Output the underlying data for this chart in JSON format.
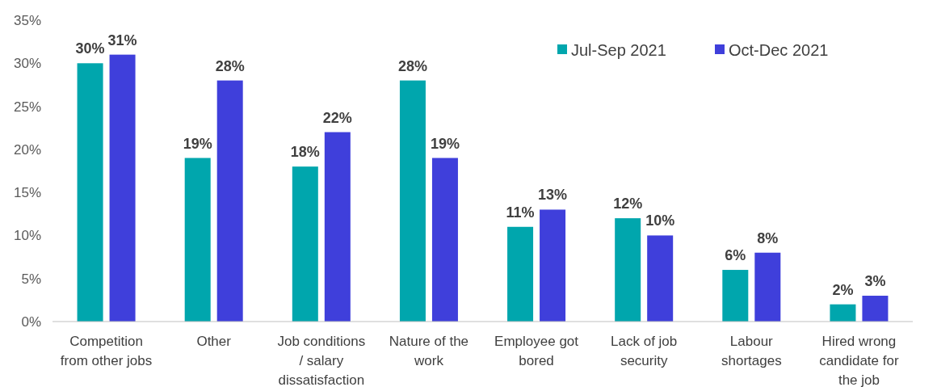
{
  "chart_data": {
    "type": "bar",
    "categories": [
      "Competition from other jobs",
      "Other",
      "Job conditions / salary dissatisfaction",
      "Nature of the work",
      "Employee got bored",
      "Lack of job security",
      "Labour shortages",
      "Hired wrong candidate for the job"
    ],
    "series": [
      {
        "name": "Jul-Sep 2021",
        "color": "#00a6ad",
        "values": [
          30,
          19,
          18,
          28,
          11,
          12,
          6,
          2
        ],
        "value_labels": [
          "30%",
          "19%",
          "18%",
          "28%",
          "11%",
          "12%",
          "6%",
          "2%"
        ]
      },
      {
        "name": "Oct-Dec 2021",
        "color": "#3f3fdb",
        "values": [
          31,
          28,
          22,
          19,
          13,
          10,
          8,
          3
        ],
        "value_labels": [
          "31%",
          "28%",
          "22%",
          "19%",
          "13%",
          "10%",
          "8%",
          "3%"
        ]
      }
    ],
    "ylim": [
      0,
      35
    ],
    "yticks": [
      {
        "value": 0,
        "label": "0%"
      },
      {
        "value": 5,
        "label": "5%"
      },
      {
        "value": 10,
        "label": "10%"
      },
      {
        "value": 15,
        "label": "15%"
      },
      {
        "value": 20,
        "label": "20%"
      },
      {
        "value": 25,
        "label": "25%"
      },
      {
        "value": 30,
        "label": "30%"
      },
      {
        "value": 35,
        "label": "35%"
      }
    ],
    "grid": false,
    "legend": "top right"
  }
}
